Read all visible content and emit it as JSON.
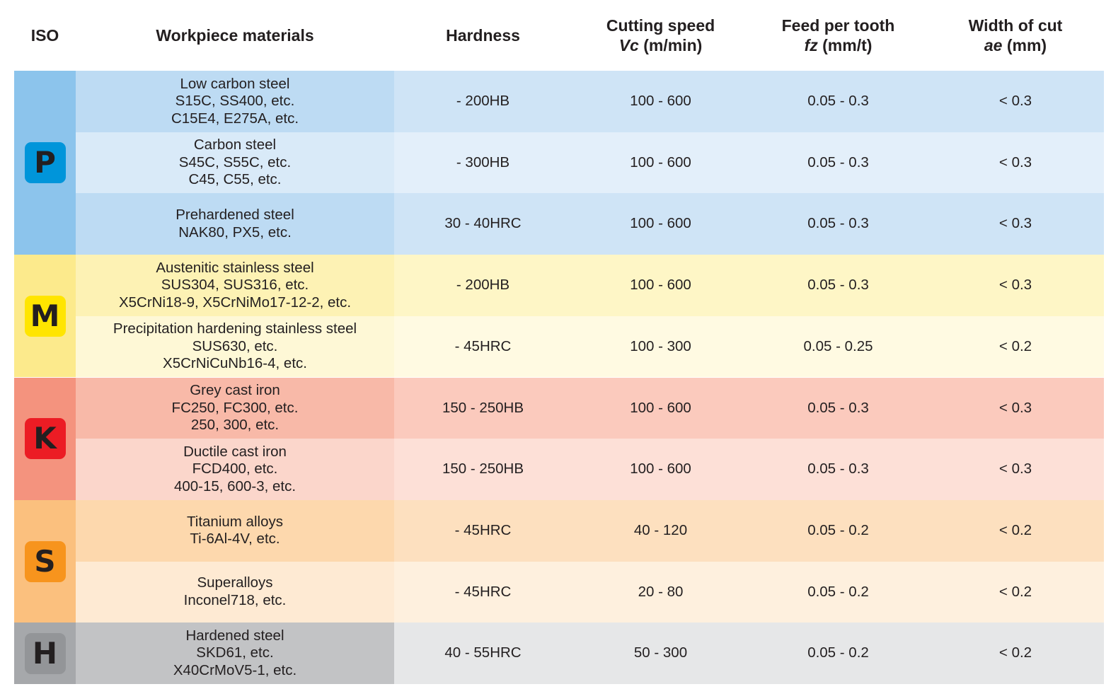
{
  "headers": {
    "iso": "ISO",
    "material": "Workpiece materials",
    "hardness": "Hardness",
    "speed_line1": "Cutting speed",
    "speed_sym": "Vc",
    "speed_unit": "(m/min)",
    "feed_line1": "Feed per tooth",
    "feed_sym": "fz",
    "feed_unit": "(mm/t)",
    "width_line1": "Width of cut",
    "width_sym": "ae",
    "width_unit": "(mm)"
  },
  "groups": [
    {
      "iso": "P",
      "colors": {
        "iso_bg": "#8cc4ec",
        "badge_bg": "#0095da",
        "badge_fg": "#231f20",
        "mat_dark": "#bddbf3",
        "mat_light": "#d9eaf8",
        "data_dark": "#cfe4f6",
        "data_light": "#e3effa"
      },
      "rows": [
        {
          "material": [
            "Low carbon steel",
            "S15C, SS400, etc.",
            "C15E4, E275A, etc."
          ],
          "hardness": "- 200HB",
          "speed": "100 - 600",
          "feed": "0.05 - 0.3",
          "width": "< 0.3"
        },
        {
          "material": [
            "Carbon steel",
            "S45C, S55C, etc.",
            "C45, C55, etc."
          ],
          "hardness": "- 300HB",
          "speed": "100 - 600",
          "feed": "0.05 - 0.3",
          "width": "< 0.3"
        },
        {
          "material": [
            "Prehardened steel",
            "NAK80, PX5, etc."
          ],
          "hardness": "30 - 40HRC",
          "speed": "100 - 600",
          "feed": "0.05 - 0.3",
          "width": "< 0.3"
        }
      ]
    },
    {
      "iso": "M",
      "colors": {
        "iso_bg": "#fcea8c",
        "badge_bg": "#ffe500",
        "badge_fg": "#231f20",
        "mat_dark": "#fdf2b4",
        "mat_light": "#fef8d6",
        "data_dark": "#fef6c6",
        "data_light": "#fffae2"
      },
      "rows": [
        {
          "material": [
            "Austenitic stainless steel",
            "SUS304, SUS316, etc.",
            "X5CrNi18-9, X5CrNiMo17-12-2, etc."
          ],
          "hardness": "- 200HB",
          "speed": "100 - 600",
          "feed": "0.05 - 0.3",
          "width": "< 0.3"
        },
        {
          "material": [
            "Precipitation hardening stainless steel",
            "SUS630, etc.",
            "X5CrNiCuNb16-4, etc."
          ],
          "hardness": "- 45HRC",
          "speed": "100 - 300",
          "feed": "0.05 - 0.25",
          "width": "< 0.2"
        }
      ]
    },
    {
      "iso": "K",
      "colors": {
        "iso_bg": "#f4937e",
        "badge_bg": "#ec1c24",
        "badge_fg": "#231f20",
        "mat_dark": "#f8b9a8",
        "mat_light": "#fbd6cb",
        "data_dark": "#fbcabd",
        "data_light": "#fde0d7"
      },
      "rows": [
        {
          "material": [
            "Grey cast iron",
            "FC250, FC300, etc.",
            "250, 300, etc."
          ],
          "hardness": "150 - 250HB",
          "speed": "100 - 600",
          "feed": "0.05 - 0.3",
          "width": "< 0.3"
        },
        {
          "material": [
            "Ductile cast iron",
            "FCD400, etc.",
            "400-15, 600-3, etc."
          ],
          "hardness": "150 - 250HB",
          "speed": "100 - 600",
          "feed": "0.05 - 0.3",
          "width": "< 0.3"
        }
      ]
    },
    {
      "iso": "S",
      "colors": {
        "iso_bg": "#fbc07e",
        "badge_bg": "#f7941d",
        "badge_fg": "#231f20",
        "mat_dark": "#fdd8ad",
        "mat_light": "#feead3",
        "data_dark": "#fde0bf",
        "data_light": "#fef0de"
      },
      "rows": [
        {
          "material": [
            "Titanium alloys",
            "Ti-6Al-4V, etc."
          ],
          "hardness": "- 45HRC",
          "speed": "40 - 120",
          "feed": "0.05 - 0.2",
          "width": "< 0.2"
        },
        {
          "material": [
            "Superalloys",
            "Inconel718, etc."
          ],
          "hardness": "- 45HRC",
          "speed": "20 - 80",
          "feed": "0.05 - 0.2",
          "width": "< 0.2"
        }
      ]
    },
    {
      "iso": "H",
      "colors": {
        "iso_bg": "#a6a8ab",
        "badge_bg": "#939598",
        "badge_fg": "#231f20",
        "mat_dark": "#c2c3c5",
        "mat_light": "#c2c3c5",
        "data_dark": "#e6e7e8",
        "data_light": "#e6e7e8"
      },
      "rows": [
        {
          "material": [
            "Hardened steel",
            "SKD61, etc.",
            "X40CrMoV5-1, etc."
          ],
          "hardness": "40 - 55HRC",
          "speed": "50 - 300",
          "feed": "0.05 - 0.2",
          "width": "< 0.2"
        }
      ]
    }
  ]
}
